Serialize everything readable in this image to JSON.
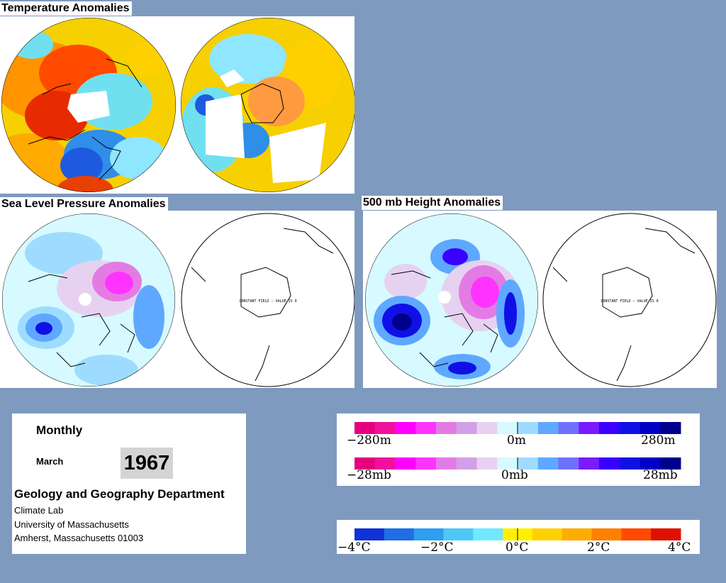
{
  "titles": {
    "temperature": "Temperature Anomalies",
    "slp": "Sea Level Pressure Anomalies",
    "height500": "500 mb Height Anomalies"
  },
  "maps": {
    "constant_field_text": "CONSTANT FIELD — VALUE IS 0"
  },
  "info": {
    "period": "Monthly",
    "month": "March",
    "year": "1967",
    "department": "Geology and Geography Department",
    "lab": "Climate Lab",
    "university": "University of Massachusetts",
    "address": "Amherst, Massachusetts 01003"
  },
  "legends": {
    "height_labels": [
      "−280m",
      "0m",
      "280m"
    ],
    "pressure_labels": [
      "−28mb",
      "0mb",
      "28mb"
    ],
    "temperature_labels": [
      "−4°C",
      "−2°C",
      "0°C",
      "2°C",
      "4°C"
    ],
    "anomaly_colors": [
      "#e6007f",
      "#f0129a",
      "#ff00ff",
      "#ff33ff",
      "#e47be4",
      "#d2a0e6",
      "#e6d2f0",
      "#d6faff",
      "#9edcff",
      "#5fa8ff",
      "#7070ff",
      "#7a1aff",
      "#3a00ff",
      "#1010e6",
      "#0000c8",
      "#00008c"
    ],
    "temperature_colors": [
      "#1032d8",
      "#1e6ee6",
      "#2e9ef0",
      "#4ec8f4",
      "#70e8ff",
      "#fff000",
      "#ffd000",
      "#ffac00",
      "#ff8000",
      "#ff4a00",
      "#e01000"
    ]
  }
}
